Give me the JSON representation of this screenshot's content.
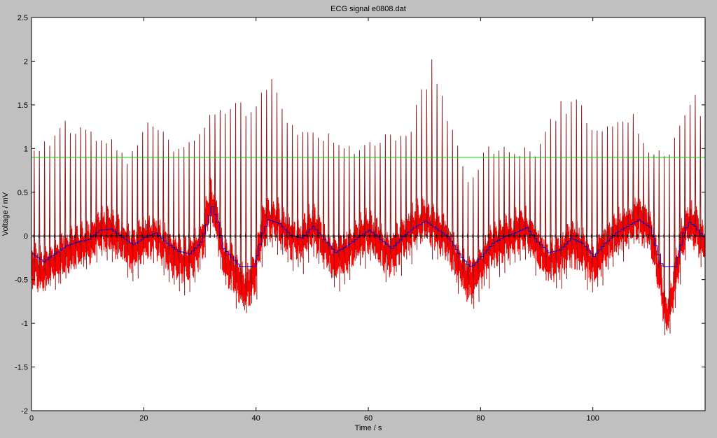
{
  "chart_data": {
    "type": "line",
    "title": "ECG signal e0808.dat",
    "xlabel": "Time / s",
    "ylabel": "Voltage / mV",
    "xlim": [
      0,
      120
    ],
    "ylim": [
      -2,
      2.5
    ],
    "xticks": [
      0,
      20,
      40,
      60,
      80,
      100
    ],
    "yticks": [
      -2,
      -1.5,
      -1,
      -0.5,
      0,
      0.5,
      1,
      1.5,
      2,
      2.5
    ],
    "xtick_labels": [
      "0",
      "20",
      "40",
      "60",
      "80",
      "100"
    ],
    "ytick_labels": [
      "-2",
      "-1.5",
      "-1",
      "-0.5",
      "0",
      "0.5",
      "1",
      "1.5",
      "2",
      "2.5"
    ],
    "grid": false,
    "colors": {
      "ecg": "#ff0000",
      "peak": "#8b1a1a",
      "filtered": "#0000cc",
      "threshold": "#00cc00",
      "markers": "#000000",
      "background": "#c0c0c0",
      "axes_bg": "#ffffff"
    },
    "threshold": {
      "y": 0.9
    },
    "baseline_wander": [
      [
        0,
        -0.3
      ],
      [
        2,
        -0.42
      ],
      [
        4,
        -0.3
      ],
      [
        6,
        -0.18
      ],
      [
        8,
        -0.12
      ],
      [
        10,
        -0.08
      ],
      [
        12,
        0.06
      ],
      [
        14,
        0.08
      ],
      [
        16,
        -0.05
      ],
      [
        18,
        -0.16
      ],
      [
        20,
        -0.05
      ],
      [
        22,
        0.02
      ],
      [
        24,
        -0.14
      ],
      [
        26,
        -0.26
      ],
      [
        28,
        -0.3
      ],
      [
        30,
        -0.12
      ],
      [
        31,
        0.15
      ],
      [
        32,
        0.42
      ],
      [
        33,
        0.18
      ],
      [
        34,
        -0.22
      ],
      [
        36,
        -0.4
      ],
      [
        38,
        -0.62
      ],
      [
        39.5,
        -0.5
      ],
      [
        41,
        0.02
      ],
      [
        42,
        0.22
      ],
      [
        44,
        0.16
      ],
      [
        46,
        -0.02
      ],
      [
        48,
        -0.06
      ],
      [
        50,
        0.12
      ],
      [
        52,
        -0.08
      ],
      [
        54,
        -0.28
      ],
      [
        56,
        -0.18
      ],
      [
        58,
        -0.05
      ],
      [
        60,
        0.06
      ],
      [
        62,
        -0.08
      ],
      [
        64,
        -0.22
      ],
      [
        66,
        -0.04
      ],
      [
        68,
        0.1
      ],
      [
        70,
        0.2
      ],
      [
        72,
        0.08
      ],
      [
        74,
        -0.04
      ],
      [
        76,
        -0.3
      ],
      [
        78,
        -0.52
      ],
      [
        80,
        -0.34
      ],
      [
        82,
        -0.14
      ],
      [
        84,
        -0.04
      ],
      [
        86,
        0.02
      ],
      [
        88,
        0.1
      ],
      [
        90,
        -0.12
      ],
      [
        92,
        -0.28
      ],
      [
        94,
        -0.24
      ],
      [
        96,
        -0.06
      ],
      [
        98,
        -0.14
      ],
      [
        100,
        -0.34
      ],
      [
        102,
        -0.14
      ],
      [
        104,
        0.02
      ],
      [
        106,
        0.12
      ],
      [
        108,
        0.22
      ],
      [
        110,
        0.1
      ],
      [
        112,
        -0.45
      ],
      [
        113,
        -0.95
      ],
      [
        114,
        -0.72
      ],
      [
        116,
        0.02
      ],
      [
        117,
        0.18
      ],
      [
        118,
        0.12
      ],
      [
        120,
        -0.1
      ]
    ],
    "peak_envelope": [
      [
        0,
        1.0
      ],
      [
        3,
        1.1
      ],
      [
        5,
        1.35
      ],
      [
        8,
        1.25
      ],
      [
        11,
        1.2
      ],
      [
        14,
        1.1
      ],
      [
        17,
        0.9
      ],
      [
        20,
        1.3
      ],
      [
        23,
        1.2
      ],
      [
        26,
        1.0
      ],
      [
        29,
        1.15
      ],
      [
        32,
        1.5
      ],
      [
        35,
        1.55
      ],
      [
        37,
        1.6
      ],
      [
        39,
        1.45
      ],
      [
        41,
        1.75
      ],
      [
        42.5,
        1.95
      ],
      [
        44,
        1.55
      ],
      [
        48,
        1.2
      ],
      [
        52,
        1.2
      ],
      [
        56,
        1.0
      ],
      [
        60,
        1.1
      ],
      [
        64,
        1.2
      ],
      [
        67,
        1.2
      ],
      [
        70,
        1.8
      ],
      [
        71.5,
        2.1
      ],
      [
        74,
        1.4
      ],
      [
        78,
        0.6
      ],
      [
        81,
        1.05
      ],
      [
        85,
        1.0
      ],
      [
        90,
        1.0
      ],
      [
        94,
        1.55
      ],
      [
        97,
        1.55
      ],
      [
        100,
        1.3
      ],
      [
        104,
        1.3
      ],
      [
        107,
        1.4
      ],
      [
        110,
        1.0
      ],
      [
        113,
        0.95
      ],
      [
        116,
        1.35
      ],
      [
        118,
        1.6
      ],
      [
        120,
        1.4
      ]
    ],
    "beat_interval_s": 0.92,
    "r_peak_marker_y": 0.0
  }
}
